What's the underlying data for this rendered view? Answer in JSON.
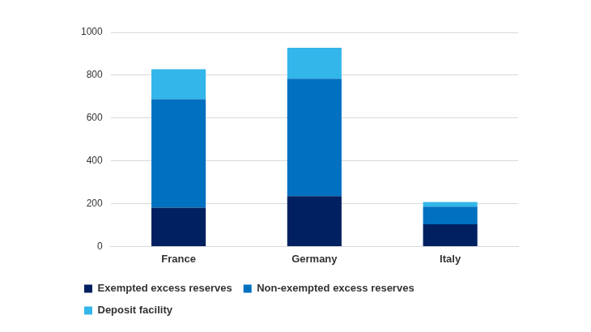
{
  "chart_data": {
    "type": "bar",
    "stacked": true,
    "categories": [
      "France",
      "Germany",
      "Italy"
    ],
    "series": [
      {
        "name": "Exempted excess reserves",
        "color": "#002060",
        "values": [
          181,
          235,
          104
        ]
      },
      {
        "name": "Non-exempted excess reserves",
        "color": "#0070C0",
        "values": [
          507,
          548,
          82
        ]
      },
      {
        "name": "Deposit facility",
        "color": "#33B6EA",
        "values": [
          140,
          145,
          22
        ]
      }
    ],
    "ylim": [
      0,
      1000
    ],
    "yticks": [
      0,
      200,
      400,
      600,
      800,
      1000
    ],
    "grid": true,
    "legend": "bottom"
  }
}
